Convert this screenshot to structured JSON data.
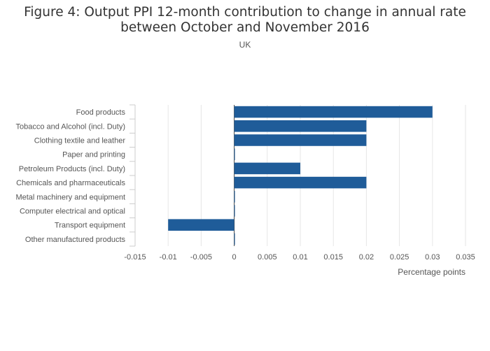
{
  "chart_data": {
    "type": "bar",
    "orientation": "horizontal",
    "title_lines": [
      "Figure 4: Output PPI 12-month contribution to change in annual rate",
      "between October and November 2016"
    ],
    "subtitle": "UK",
    "xlabel": "Percentage points",
    "ylabel": "",
    "categories": [
      "Food products",
      "Tobacco and Alcohol (incl. Duty)",
      "Clothing textile and leather",
      "Paper and printing",
      "Petroleum Products (incl. Duty)",
      "Chemicals and pharmaceuticals",
      "Metal machinery and equipment",
      "Computer electrical and optical",
      "Transport equipment",
      "Other manufactured products"
    ],
    "values": [
      0.03,
      0.02,
      0.02,
      0,
      0.01,
      0.02,
      0,
      0,
      -0.01,
      0
    ],
    "xlim": [
      -0.015,
      0.035
    ],
    "xticks": [
      "-0.015",
      "-0.01",
      "-0.005",
      "0",
      "0.005",
      "0.01",
      "0.015",
      "0.02",
      "0.025",
      "0.03",
      "0.035"
    ],
    "grid": true,
    "legend": "none",
    "bar_color": "#1f5c99",
    "grid_color": "#e6e6e6",
    "axis_color": "#cccccc",
    "text_color": "#555555"
  }
}
